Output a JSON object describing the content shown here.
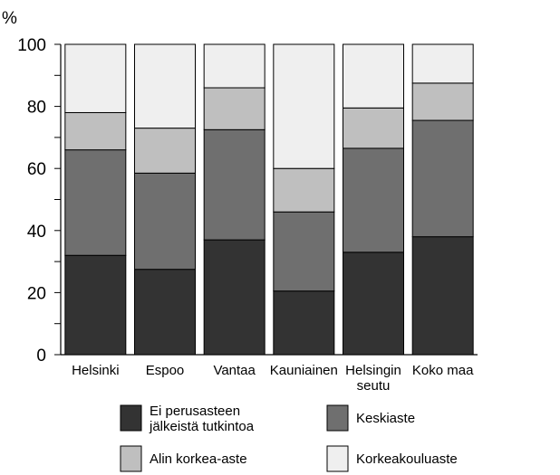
{
  "chart_data": {
    "type": "bar",
    "stacked": true,
    "y_unit": "%",
    "ylim": [
      0,
      100
    ],
    "y_ticks": [
      "0",
      "20",
      "40",
      "60",
      "80",
      "100"
    ],
    "categories": [
      [
        "Helsinki"
      ],
      [
        "Espoo"
      ],
      [
        "Vantaa"
      ],
      [
        "Kauniainen"
      ],
      [
        "Helsingin",
        "seutu"
      ],
      [
        "Koko maa"
      ]
    ],
    "series": [
      {
        "name": [
          "Ei perusasteen",
          "jälkeistä tutkintoa"
        ],
        "color": "#333333",
        "values": [
          32,
          27.5,
          37,
          20.5,
          33,
          38
        ]
      },
      {
        "name": [
          "Keskiaste"
        ],
        "color": "#6f6f6f",
        "values": [
          34,
          31,
          35.5,
          25.5,
          33.5,
          37.5
        ]
      },
      {
        "name": [
          "Alin korkea-aste"
        ],
        "color": "#bfbfbf",
        "values": [
          12,
          14.5,
          13.5,
          14,
          13,
          12
        ]
      },
      {
        "name": [
          "Korkeakouluaste"
        ],
        "color": "#efefef",
        "values": [
          22,
          27,
          14,
          40,
          20.5,
          12.5
        ]
      }
    ],
    "legend_position": "bottom",
    "grid": false
  }
}
